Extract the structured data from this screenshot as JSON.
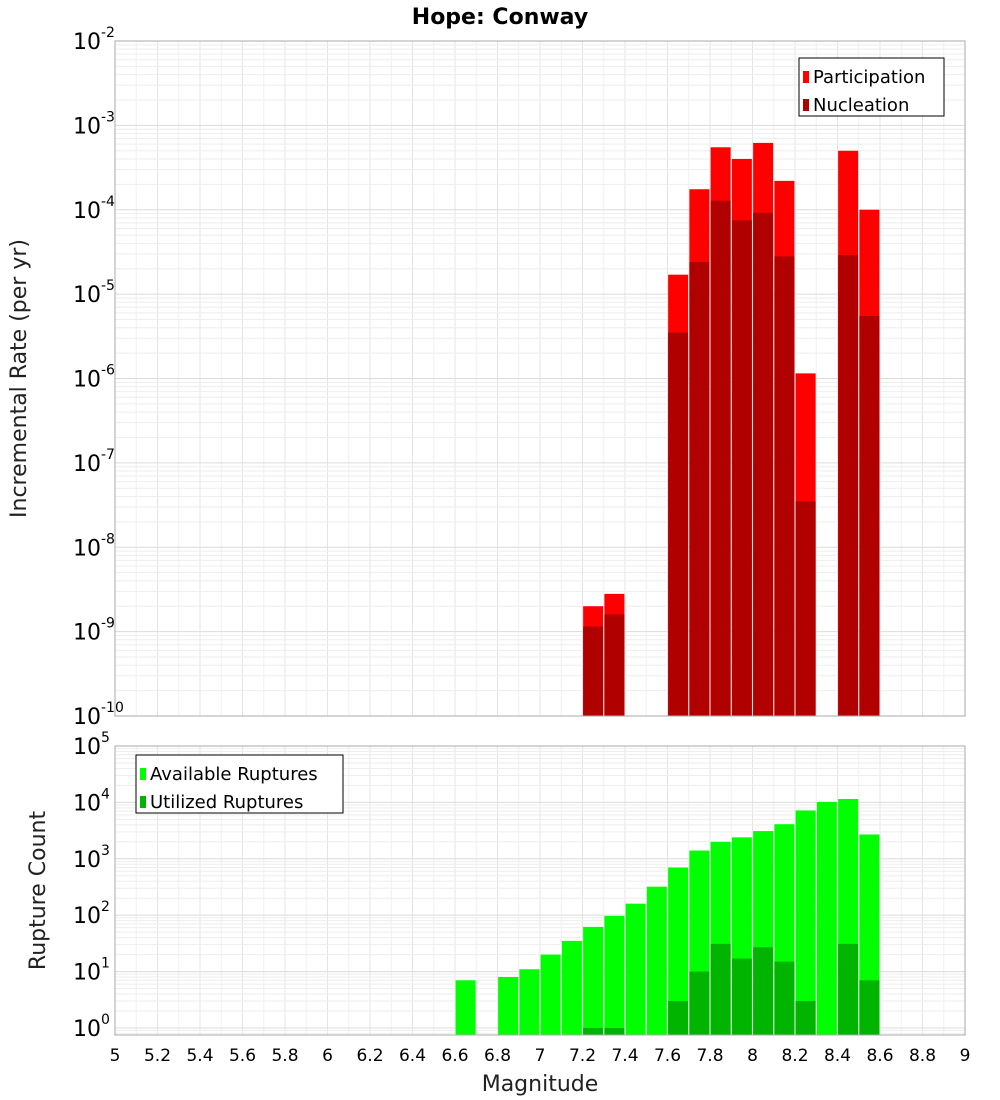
{
  "title": "Hope: Conway",
  "colors": {
    "participation": "#ff0000",
    "nucleation": "#b00000",
    "available": "#00ff00",
    "utilized": "#00b400"
  },
  "chart_data": [
    {
      "type": "bar",
      "scale": "log",
      "xlabel": "Magnitude",
      "ylabel": "Incremental Rate (per yr)",
      "xlim": [
        5,
        9
      ],
      "ylim": [
        1e-10,
        0.01
      ],
      "x_ticks": [
        "5",
        "5.2",
        "5.4",
        "5.6",
        "5.8",
        "6",
        "6.2",
        "6.4",
        "6.6",
        "6.8",
        "7",
        "7.2",
        "7.4",
        "7.6",
        "7.8",
        "8",
        "8.2",
        "8.4",
        "8.6",
        "8.8",
        "9"
      ],
      "y_ticks": [
        {
          "base": "10",
          "exp": "-10"
        },
        {
          "base": "10",
          "exp": "-9"
        },
        {
          "base": "10",
          "exp": "-8"
        },
        {
          "base": "10",
          "exp": "-7"
        },
        {
          "base": "10",
          "exp": "-6"
        },
        {
          "base": "10",
          "exp": "-5"
        },
        {
          "base": "10",
          "exp": "-4"
        },
        {
          "base": "10",
          "exp": "-3"
        },
        {
          "base": "10",
          "exp": "-2"
        }
      ],
      "legend_position": "top-right",
      "x": [
        7.25,
        7.35,
        7.65,
        7.75,
        7.85,
        7.95,
        8.05,
        8.15,
        8.25,
        8.45,
        8.55
      ],
      "series": [
        {
          "name": "Participation",
          "values": [
            2e-09,
            2.8e-09,
            1.7e-05,
            0.000175,
            0.00055,
            0.0004,
            0.00062,
            0.00022,
            1.15e-06,
            0.0005,
            0.0001
          ]
        },
        {
          "name": "Nucleation",
          "values": [
            1.15e-09,
            1.6e-09,
            3.5e-06,
            2.4e-05,
            0.000128,
            7.5e-05,
            9.2e-05,
            2.8e-05,
            3.5e-08,
            2.9e-05,
            5.5e-06
          ]
        }
      ]
    },
    {
      "type": "bar",
      "scale": "log",
      "xlabel": "Magnitude",
      "ylabel": "Rupture Count",
      "xlim": [
        5,
        9
      ],
      "ylim": [
        0.75,
        100000.0
      ],
      "y_ticks": [
        {
          "base": "10",
          "exp": "0"
        },
        {
          "base": "10",
          "exp": "1"
        },
        {
          "base": "10",
          "exp": "2"
        },
        {
          "base": "10",
          "exp": "3"
        },
        {
          "base": "10",
          "exp": "4"
        },
        {
          "base": "10",
          "exp": "5"
        }
      ],
      "legend_position": "top-left",
      "x": [
        6.65,
        6.85,
        6.95,
        7.05,
        7.15,
        7.25,
        7.35,
        7.45,
        7.55,
        7.65,
        7.75,
        7.85,
        7.95,
        8.05,
        8.15,
        8.25,
        8.35,
        8.45,
        8.55
      ],
      "series": [
        {
          "name": "Available Ruptures",
          "values": [
            7,
            8,
            11,
            20,
            35,
            62,
            97,
            160,
            320,
            700,
            1400,
            2000,
            2400,
            3100,
            4100,
            7200,
            10200,
            11500,
            2700
          ]
        },
        {
          "name": "Utilized Ruptures",
          "values": [
            0,
            0,
            0,
            0,
            0,
            1,
            1,
            0,
            0,
            3,
            10,
            31,
            17,
            27,
            15,
            3,
            0,
            31,
            7
          ]
        }
      ]
    }
  ]
}
